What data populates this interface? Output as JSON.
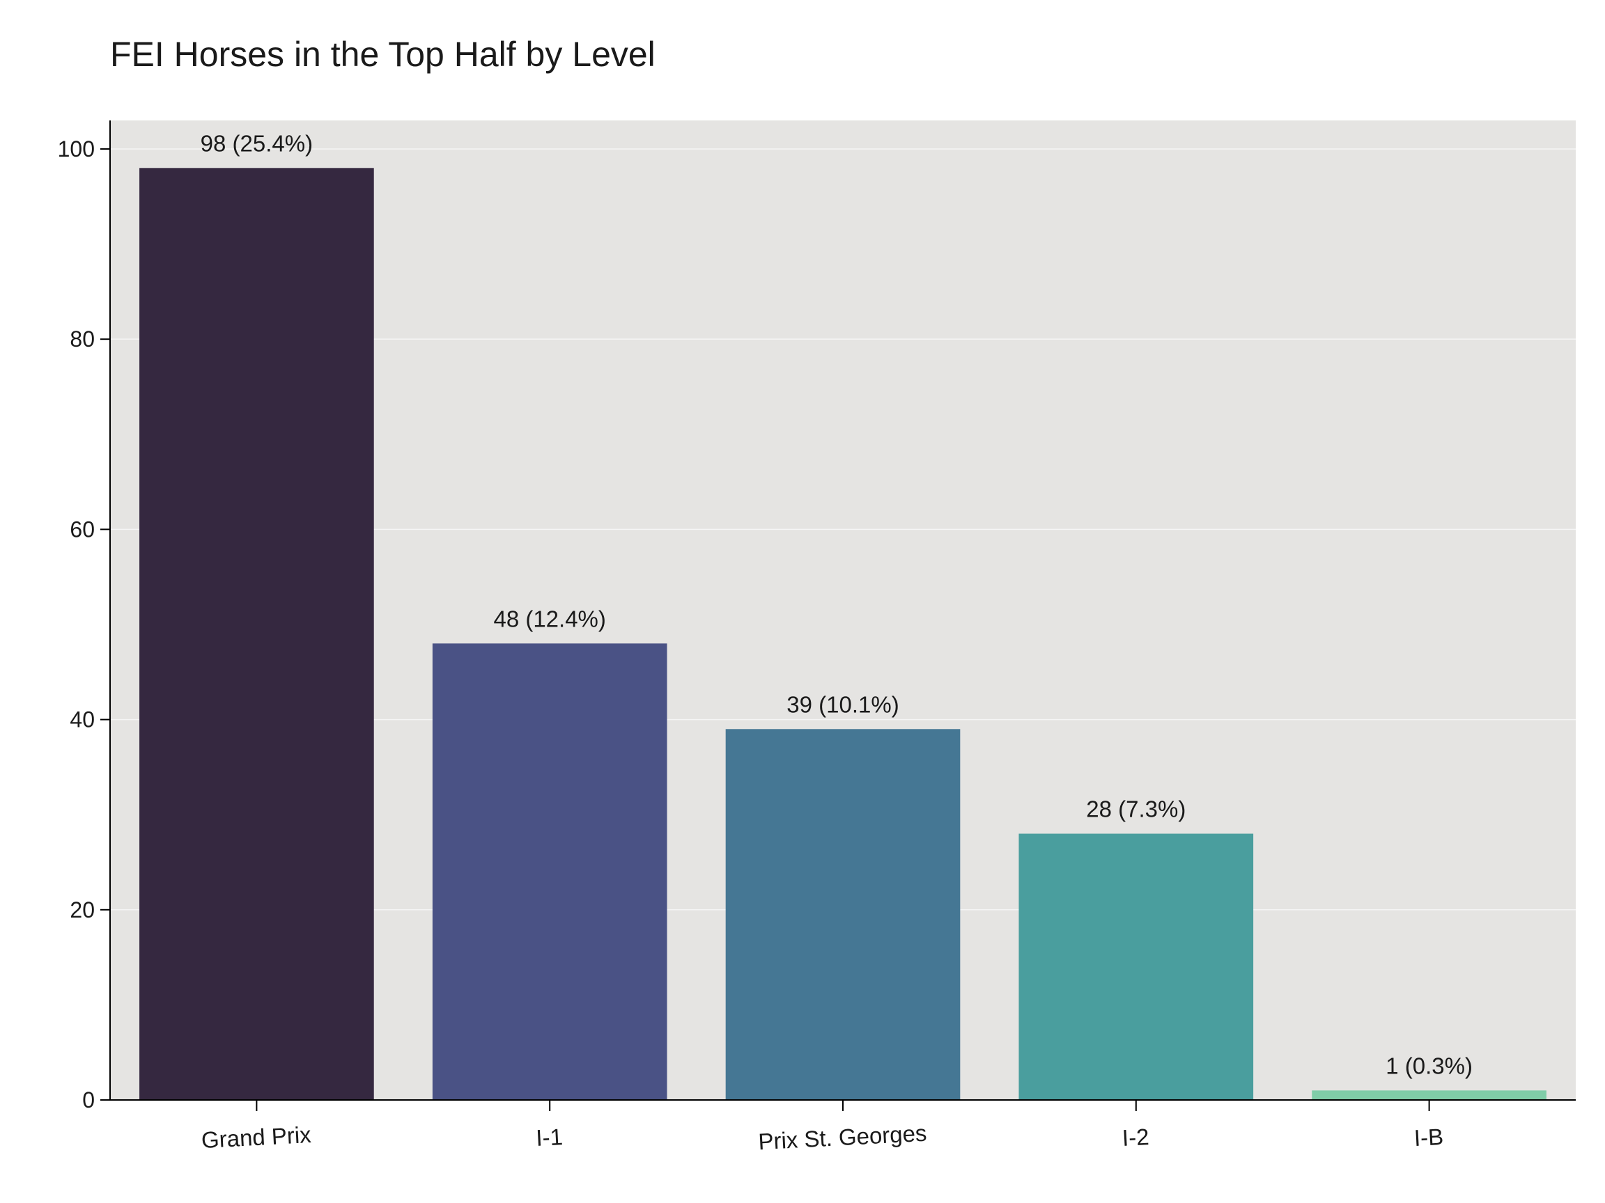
{
  "chart_data": {
    "type": "bar",
    "title": "FEI Horses in the Top Half by Level",
    "xlabel": "",
    "ylabel": "",
    "categories": [
      "Grand Prix",
      "I-1",
      "Prix St. Georges",
      "I-2",
      "I-B"
    ],
    "values": [
      98,
      48,
      39,
      28,
      1
    ],
    "data_labels": [
      "98 (25.4%)",
      "48 (12.4%)",
      "39 (10.1%)",
      "28 (7.3%)",
      "1 (0.3%)"
    ],
    "colors": [
      "#352840",
      "#4a5285",
      "#457794",
      "#4a9e9e",
      "#80cda8"
    ],
    "ylim": [
      0,
      103
    ],
    "yticks": [
      0,
      20,
      40,
      60,
      80,
      100
    ],
    "grid": true,
    "plot_background": "#e5e4e2",
    "grid_color": "#f5f5f5"
  }
}
